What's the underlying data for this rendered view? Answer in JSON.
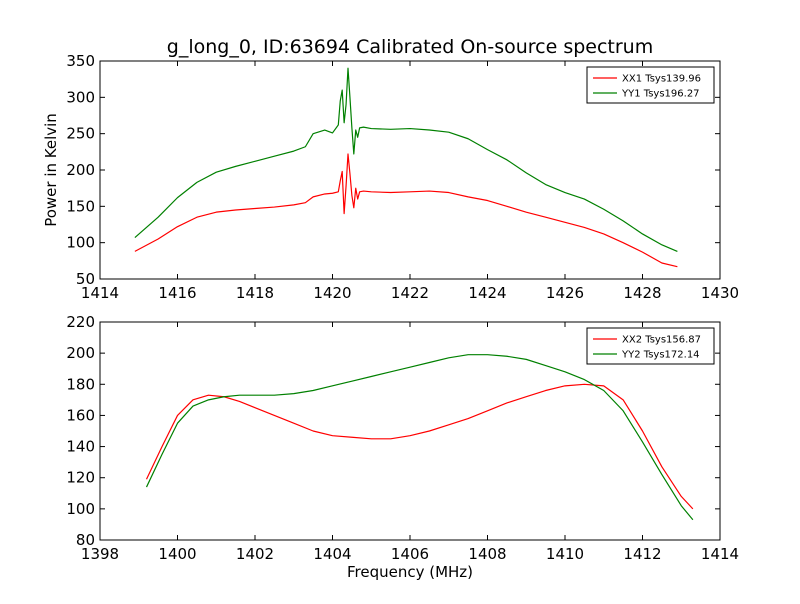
{
  "title": "g_long_0, ID:63694 Calibrated On-source spectrum",
  "chart_data": [
    {
      "type": "line",
      "ylabel": "Power in Kelvin",
      "xlabel": "",
      "xlim": [
        1414,
        1430
      ],
      "ylim": [
        50,
        350
      ],
      "xticks": [
        1414,
        1416,
        1418,
        1420,
        1422,
        1424,
        1426,
        1428,
        1430
      ],
      "yticks": [
        50,
        100,
        150,
        200,
        250,
        300,
        350
      ],
      "legend_position": "top-right",
      "series": [
        {
          "name": "XX1 Tsys139.96",
          "color": "#ff0000",
          "x": [
            1414.9,
            1415.5,
            1416.0,
            1416.5,
            1417.0,
            1417.5,
            1418.0,
            1418.5,
            1419.0,
            1419.3,
            1419.5,
            1419.8,
            1420.0,
            1420.15,
            1420.2,
            1420.25,
            1420.3,
            1420.35,
            1420.4,
            1420.45,
            1420.5,
            1420.55,
            1420.6,
            1420.65,
            1420.7,
            1420.8,
            1421.0,
            1421.5,
            1422.0,
            1422.5,
            1423.0,
            1423.5,
            1424.0,
            1424.5,
            1425.0,
            1425.5,
            1426.0,
            1426.5,
            1427.0,
            1427.5,
            1428.0,
            1428.5,
            1428.9
          ],
          "y": [
            88,
            105,
            122,
            135,
            142,
            145,
            147,
            149,
            152,
            155,
            163,
            167,
            168,
            170,
            185,
            198,
            140,
            178,
            222,
            195,
            165,
            148,
            175,
            160,
            170,
            171,
            170,
            169,
            170,
            171,
            169,
            163,
            158,
            150,
            142,
            135,
            128,
            121,
            112,
            100,
            87,
            72,
            67
          ]
        },
        {
          "name": "YY1 Tsys196.27",
          "color": "#008000",
          "x": [
            1414.9,
            1415.5,
            1416.0,
            1416.5,
            1417.0,
            1417.5,
            1418.0,
            1418.5,
            1419.0,
            1419.3,
            1419.5,
            1419.8,
            1420.0,
            1420.15,
            1420.2,
            1420.25,
            1420.3,
            1420.35,
            1420.4,
            1420.45,
            1420.5,
            1420.55,
            1420.6,
            1420.65,
            1420.7,
            1420.8,
            1421.0,
            1421.5,
            1422.0,
            1422.5,
            1423.0,
            1423.5,
            1424.0,
            1424.5,
            1425.0,
            1425.5,
            1426.0,
            1426.5,
            1427.0,
            1427.5,
            1428.0,
            1428.5,
            1428.9
          ],
          "y": [
            107,
            135,
            162,
            183,
            197,
            205,
            212,
            219,
            226,
            232,
            250,
            255,
            251,
            262,
            295,
            310,
            265,
            290,
            340,
            300,
            258,
            222,
            255,
            245,
            258,
            259,
            257,
            256,
            257,
            255,
            252,
            243,
            228,
            214,
            196,
            180,
            169,
            160,
            146,
            130,
            112,
            97,
            88
          ]
        }
      ]
    },
    {
      "type": "line",
      "ylabel": "",
      "xlabel": "Frequency (MHz)",
      "xlim": [
        1398,
        1414
      ],
      "ylim": [
        80,
        220
      ],
      "xticks": [
        1398,
        1400,
        1402,
        1404,
        1406,
        1408,
        1410,
        1412,
        1414
      ],
      "yticks": [
        80,
        100,
        120,
        140,
        160,
        180,
        200,
        220
      ],
      "legend_position": "top-right",
      "series": [
        {
          "name": "XX2 Tsys156.87",
          "color": "#ff0000",
          "x": [
            1399.2,
            1399.6,
            1400.0,
            1400.4,
            1400.8,
            1401.2,
            1401.6,
            1402.0,
            1402.5,
            1403.0,
            1403.5,
            1404.0,
            1404.5,
            1405.0,
            1405.5,
            1406.0,
            1406.5,
            1407.0,
            1407.5,
            1408.0,
            1408.5,
            1409.0,
            1409.5,
            1410.0,
            1410.5,
            1411.0,
            1411.5,
            1412.0,
            1412.5,
            1413.0,
            1413.3
          ],
          "y": [
            119,
            140,
            160,
            170,
            173,
            172,
            169,
            165,
            160,
            155,
            150,
            147,
            146,
            145,
            145,
            147,
            150,
            154,
            158,
            163,
            168,
            172,
            176,
            179,
            180,
            179,
            170,
            150,
            127,
            108,
            100
          ]
        },
        {
          "name": "YY2 Tsys172.14",
          "color": "#008000",
          "x": [
            1399.2,
            1399.6,
            1400.0,
            1400.4,
            1400.8,
            1401.2,
            1401.6,
            1402.0,
            1402.5,
            1403.0,
            1403.5,
            1404.0,
            1404.5,
            1405.0,
            1405.5,
            1406.0,
            1406.5,
            1407.0,
            1407.5,
            1408.0,
            1408.5,
            1409.0,
            1409.5,
            1410.0,
            1410.5,
            1411.0,
            1411.5,
            1412.0,
            1412.5,
            1413.0,
            1413.3
          ],
          "y": [
            114,
            135,
            155,
            166,
            170,
            172,
            173,
            173,
            173,
            174,
            176,
            179,
            182,
            185,
            188,
            191,
            194,
            197,
            199,
            199,
            198,
            196,
            192,
            188,
            183,
            176,
            163,
            143,
            122,
            102,
            93
          ]
        }
      ]
    }
  ]
}
